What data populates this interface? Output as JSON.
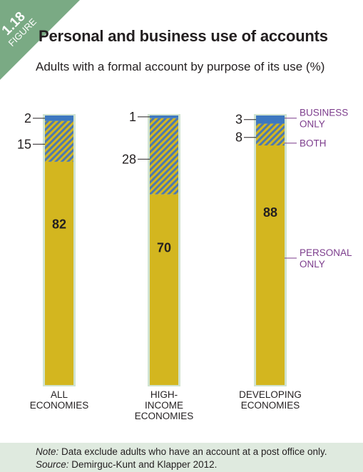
{
  "figure": {
    "number": "1.18",
    "label": "FIGURE"
  },
  "title": "Personal and business use of accounts",
  "subtitle": "Adults with a formal account by purpose of its use (%)",
  "colors": {
    "business_only": "#3e78c0",
    "both_stripe_a": "#4d79b0",
    "both_stripe_b": "#d3b61f",
    "personal_only": "#d3b61f",
    "bar_frame": "#d0e3d0",
    "legend_text": "#7c3c8c",
    "badge": "#7aaa84"
  },
  "chart_data": {
    "type": "bar",
    "stacked": true,
    "categories": [
      "ALL ECONOMIES",
      "HIGH-INCOME ECONOMIES",
      "DEVELOPING ECONOMIES"
    ],
    "category_lines": [
      [
        "ALL",
        "ECONOMIES"
      ],
      [
        "HIGH-",
        "INCOME",
        "ECONOMIES"
      ],
      [
        "DEVELOPING",
        "ECONOMIES"
      ]
    ],
    "series": [
      {
        "name": "BUSINESS ONLY",
        "legend_lines": [
          "BUSINESS",
          "ONLY"
        ],
        "values": [
          2,
          1,
          3
        ]
      },
      {
        "name": "BOTH",
        "legend_lines": [
          "BOTH"
        ],
        "values": [
          15,
          28,
          8
        ]
      },
      {
        "name": "PERSONAL ONLY",
        "legend_lines": [
          "PERSONAL",
          "ONLY"
        ],
        "values": [
          82,
          70,
          88
        ]
      }
    ],
    "ylim": [
      0,
      100
    ],
    "legend_position": "right"
  },
  "notes": {
    "note_label": "Note:",
    "note_text": " Data exclude adults who have an account at a post office only.",
    "source_label": "Source:",
    "source_text": " Demirguc-Kunt and Klapper 2012."
  }
}
